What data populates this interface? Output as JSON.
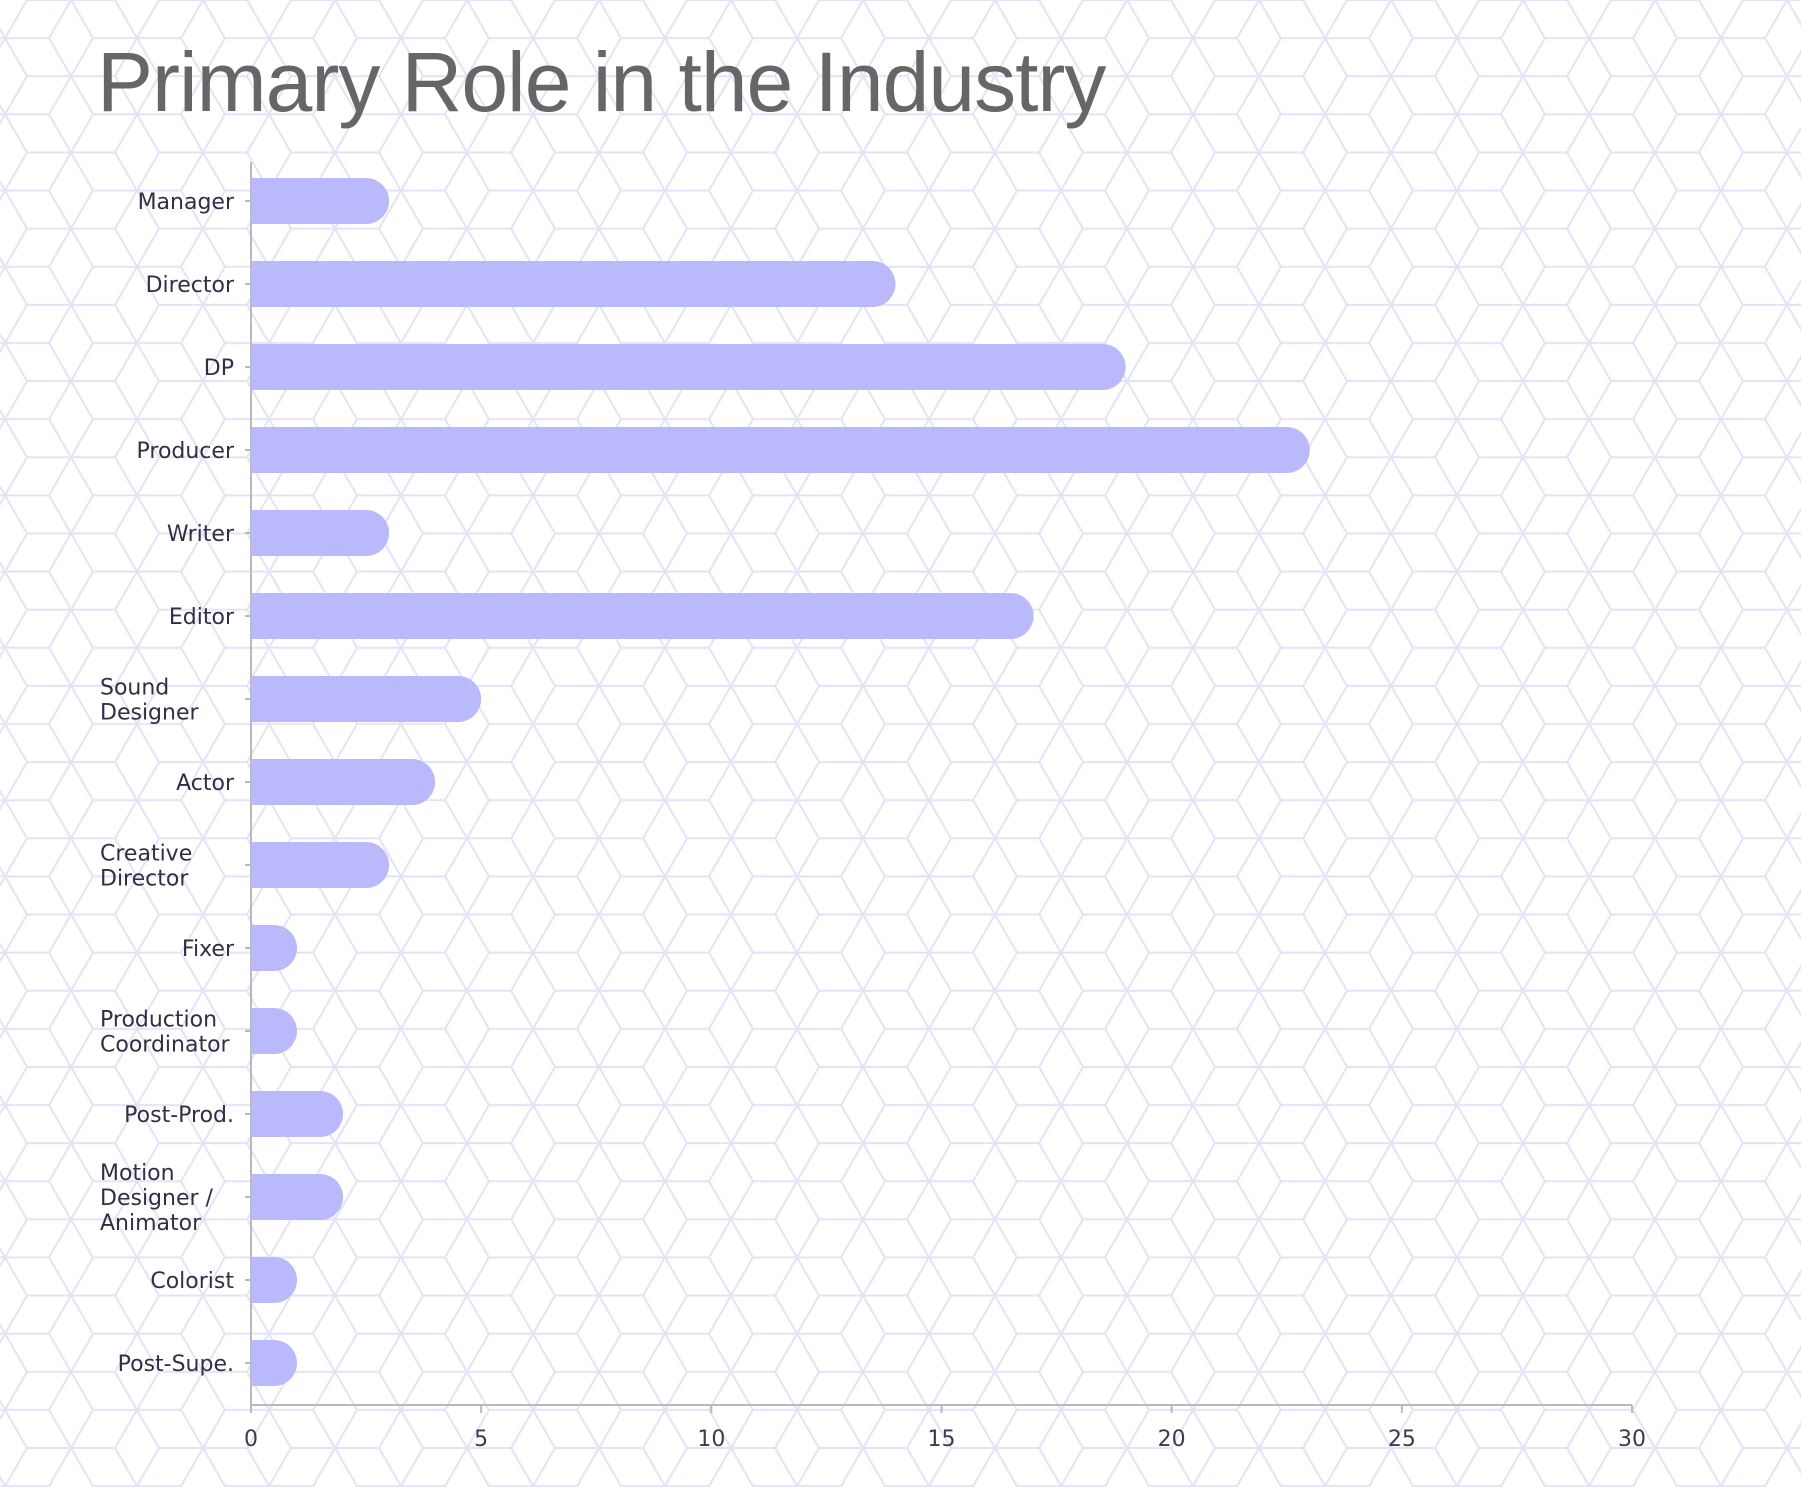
{
  "chart_data": {
    "type": "bar",
    "orientation": "horizontal",
    "title": "Primary Role in the Industry",
    "xlabel": "",
    "ylabel": "",
    "categories": [
      "Manager",
      "Director",
      "DP",
      "Producer",
      "Writer",
      "Editor",
      "Sound Designer",
      "Actor",
      "Creative Director",
      "Fixer",
      "Production Coordinator",
      "Post-Prod.",
      "Motion Designer / Animator",
      "Colorist",
      "Post-Supe."
    ],
    "category_lines": [
      [
        "Manager"
      ],
      [
        "Director"
      ],
      [
        "DP"
      ],
      [
        "Producer"
      ],
      [
        "Writer"
      ],
      [
        "Editor"
      ],
      [
        "Sound",
        "Designer"
      ],
      [
        "Actor"
      ],
      [
        "Creative",
        "Director"
      ],
      [
        "Fixer"
      ],
      [
        "Production",
        "Coordinator"
      ],
      [
        "Post-Prod."
      ],
      [
        "Motion",
        "Designer /",
        "Animator"
      ],
      [
        "Colorist"
      ],
      [
        "Post-Supe."
      ]
    ],
    "values": [
      3,
      14,
      19,
      23,
      3,
      17,
      5,
      4,
      3,
      1,
      1,
      2,
      2,
      1,
      1
    ],
    "xlim": [
      0,
      30
    ],
    "xticks": [
      0,
      5,
      10,
      15,
      20,
      25,
      30
    ],
    "grid": false,
    "legend": "none",
    "bar_color": "#b9b9fb",
    "background_pattern": "hexagon-cube",
    "pattern_color": "#e4e2f7"
  }
}
